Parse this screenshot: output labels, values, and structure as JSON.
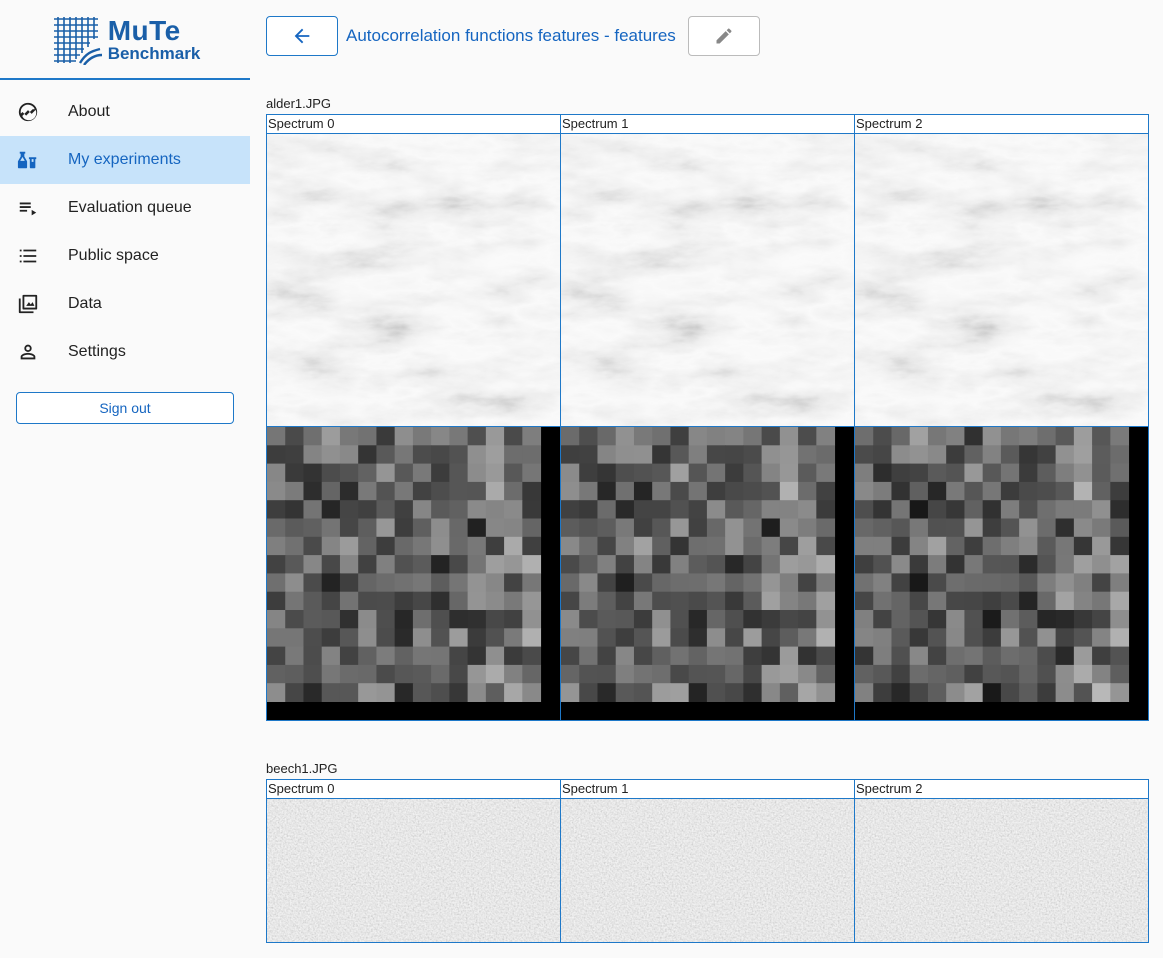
{
  "app": {
    "logo_line1": "MuTe",
    "logo_line2": "Benchmark"
  },
  "sidebar": {
    "items": [
      {
        "label": "About",
        "icon": "about-icon",
        "active": false
      },
      {
        "label": "My experiments",
        "icon": "experiments-icon",
        "active": true
      },
      {
        "label": "Evaluation queue",
        "icon": "queue-icon",
        "active": false
      },
      {
        "label": "Public space",
        "icon": "list-icon",
        "active": false
      },
      {
        "label": "Data",
        "icon": "gallery-icon",
        "active": false
      },
      {
        "label": "Settings",
        "icon": "person-icon",
        "active": false
      }
    ],
    "signout_label": "Sign out"
  },
  "header": {
    "title": "Autocorrelation functions features - features"
  },
  "sections": [
    {
      "name": "alder1.JPG",
      "columns": [
        "Spectrum 0",
        "Spectrum 1",
        "Spectrum 2"
      ]
    },
    {
      "name": "beech1.JPG",
      "columns": [
        "Spectrum 0",
        "Spectrum 1",
        "Spectrum 2"
      ]
    }
  ],
  "colors": {
    "accent": "#1e78c8",
    "active_bg": "#c7e3fa"
  }
}
